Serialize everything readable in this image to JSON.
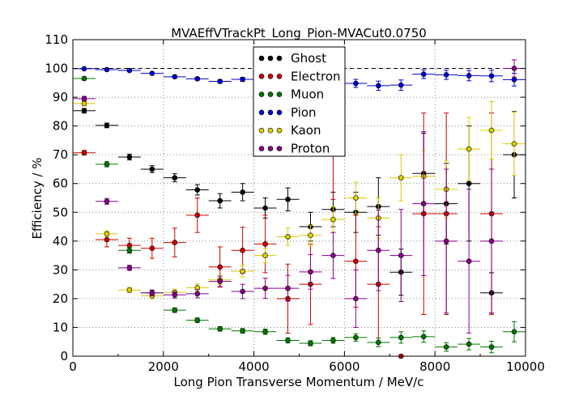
{
  "chart_data": {
    "type": "scatter",
    "title": "MVAEffVTrackPt_Long_Pion-MVACut0.0750",
    "xlabel": "Long Pion Transverse Momentum / MeV/c",
    "ylabel": "Efficiency / %",
    "xlim": [
      0,
      10000
    ],
    "ylim": [
      0,
      110
    ],
    "x_ticks": [
      "0",
      "2000",
      "4000",
      "6000",
      "8000",
      "10000"
    ],
    "y_ticks": [
      "0",
      "10",
      "20",
      "30",
      "40",
      "50",
      "60",
      "70",
      "80",
      "90",
      "100",
      "110"
    ],
    "grid": true,
    "reference_line_y": 100,
    "legend_position": "top-center",
    "bin_half_width": 250,
    "x": [
      250,
      750,
      1250,
      1750,
      2250,
      2750,
      3250,
      3750,
      4250,
      4750,
      5250,
      5750,
      6250,
      6750,
      7250,
      7750,
      8250,
      8750,
      9250,
      9750
    ],
    "series": [
      {
        "name": "Ghost",
        "color": "#000000",
        "y": [
          85.3,
          80.2,
          69.2,
          65.0,
          62.0,
          57.8,
          54.0,
          57.0,
          51.5,
          54.5,
          45.0,
          51.0,
          50.0,
          52.0,
          29.2,
          63.5,
          53.0,
          60.0,
          22.0,
          70.0
        ],
        "err": [
          0.8,
          0.8,
          1.0,
          1.2,
          1.4,
          1.8,
          2.5,
          3.0,
          3.5,
          4.0,
          5.0,
          6.0,
          7.0,
          10.0,
          8.0,
          14.0,
          14.0,
          20.0,
          7.0,
          15.0
        ]
      },
      {
        "name": "Electron",
        "color": "#cc0000",
        "y": [
          70.7,
          40.5,
          38.5,
          37.5,
          39.5,
          49.0,
          31.0,
          36.8,
          39.0,
          20.0,
          25.0,
          71.5,
          33.0,
          25.0,
          0.0,
          49.5,
          49.5,
          0,
          49.5,
          0
        ],
        "err": [
          0.8,
          2.5,
          2.5,
          3.5,
          5.0,
          6.0,
          7.0,
          8.0,
          10.0,
          12.0,
          14.0,
          17.0,
          16.0,
          20.0,
          0.0,
          35.0,
          35.0,
          0,
          35.0,
          0
        ],
        "present": [
          true,
          true,
          true,
          true,
          true,
          true,
          true,
          true,
          true,
          true,
          true,
          true,
          true,
          true,
          true,
          true,
          true,
          false,
          true,
          false
        ]
      },
      {
        "name": "Muon",
        "color": "#007700",
        "y": [
          96.5,
          66.7,
          36.8,
          22.0,
          16.0,
          12.5,
          9.5,
          8.8,
          8.5,
          5.5,
          4.5,
          5.5,
          6.5,
          4.8,
          6.5,
          6.8,
          3.2,
          4.2,
          3.2,
          8.5
        ],
        "err": [
          0.5,
          0.9,
          1.0,
          0.9,
          0.8,
          0.8,
          0.8,
          0.8,
          0.9,
          0.9,
          0.9,
          1.0,
          1.3,
          1.5,
          2.0,
          2.0,
          1.5,
          2.0,
          2.0,
          3.5
        ]
      },
      {
        "name": "Pion",
        "color": "#0000cc",
        "y": [
          99.9,
          99.6,
          99.3,
          98.3,
          97.1,
          96.4,
          95.5,
          96.2,
          95.6,
          96.1,
          96.2,
          96.7,
          94.8,
          94.0,
          94.2,
          98.0,
          97.8,
          97.5,
          97.4,
          96.1
        ],
        "err": [
          0.1,
          0.1,
          0.2,
          0.3,
          0.4,
          0.5,
          0.6,
          0.7,
          0.8,
          0.9,
          1.0,
          1.2,
          1.4,
          1.6,
          1.8,
          1.5,
          1.6,
          1.8,
          2.0,
          2.2
        ]
      },
      {
        "name": "Kaon",
        "color": "#ddcc00",
        "y": [
          87.8,
          42.5,
          23.0,
          21.0,
          22.2,
          23.8,
          26.5,
          29.5,
          35.0,
          41.5,
          42.0,
          47.5,
          55.0,
          48.0,
          62.0,
          62.5,
          58.0,
          72.0,
          78.5,
          73.8
        ],
        "err": [
          0.8,
          1.0,
          0.9,
          1.0,
          1.1,
          1.3,
          1.6,
          2.0,
          2.5,
          3.0,
          3.5,
          4.5,
          5.5,
          7.0,
          8.0,
          9.0,
          10.0,
          11.0,
          10.0,
          11.0
        ]
      },
      {
        "name": "Proton",
        "color": "#880088",
        "y": [
          89.5,
          53.8,
          30.7,
          22.0,
          21.3,
          21.7,
          26.0,
          22.5,
          23.6,
          23.6,
          29.3,
          35.0,
          20.0,
          36.8,
          35.0,
          53.0,
          40.0,
          33.0,
          40.0,
          100.0
        ],
        "err": [
          0.8,
          1.0,
          0.9,
          1.0,
          1.1,
          1.4,
          1.8,
          2.5,
          3.5,
          4.5,
          6.0,
          8.0,
          10.0,
          14.0,
          16.0,
          25.0,
          25.0,
          25.0,
          25.0,
          3.0
        ]
      }
    ]
  }
}
